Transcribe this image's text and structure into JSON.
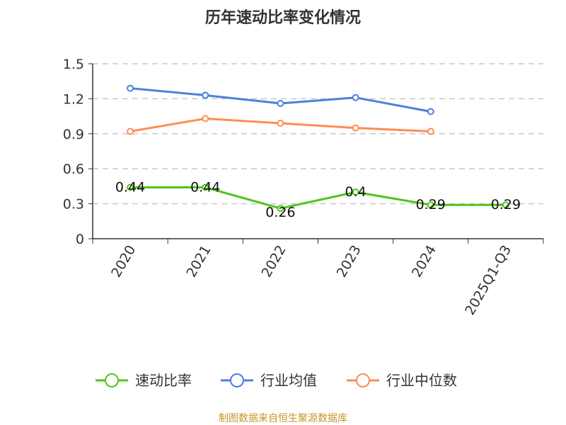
{
  "chart_data": {
    "type": "line",
    "title": "历年速动比率变化情况",
    "categories": [
      "2020",
      "2021",
      "2022",
      "2023",
      "2024",
      "2025Q1-Q3"
    ],
    "ylim": [
      0,
      1.5
    ],
    "yticks": [
      "0",
      "0.3",
      "0.6",
      "0.9",
      "1.2",
      "1.5"
    ],
    "grid": true,
    "legend_position": "bottom",
    "series": [
      {
        "name": "速动比率",
        "color": "#52c41a",
        "values": [
          0.44,
          0.44,
          0.26,
          0.4,
          0.29,
          0.29
        ],
        "labels": [
          "0.44",
          "0.44",
          "0.26",
          "0.4",
          "0.29",
          "0.29"
        ]
      },
      {
        "name": "行业均值",
        "color": "#4a80e0",
        "values": [
          1.29,
          1.23,
          1.16,
          1.21,
          1.09,
          null
        ]
      },
      {
        "name": "行业中位数",
        "color": "#ff8c55",
        "values": [
          0.92,
          1.03,
          0.99,
          0.95,
          0.92,
          null
        ]
      }
    ]
  },
  "source": "制图数据来自恒生聚源数据库"
}
